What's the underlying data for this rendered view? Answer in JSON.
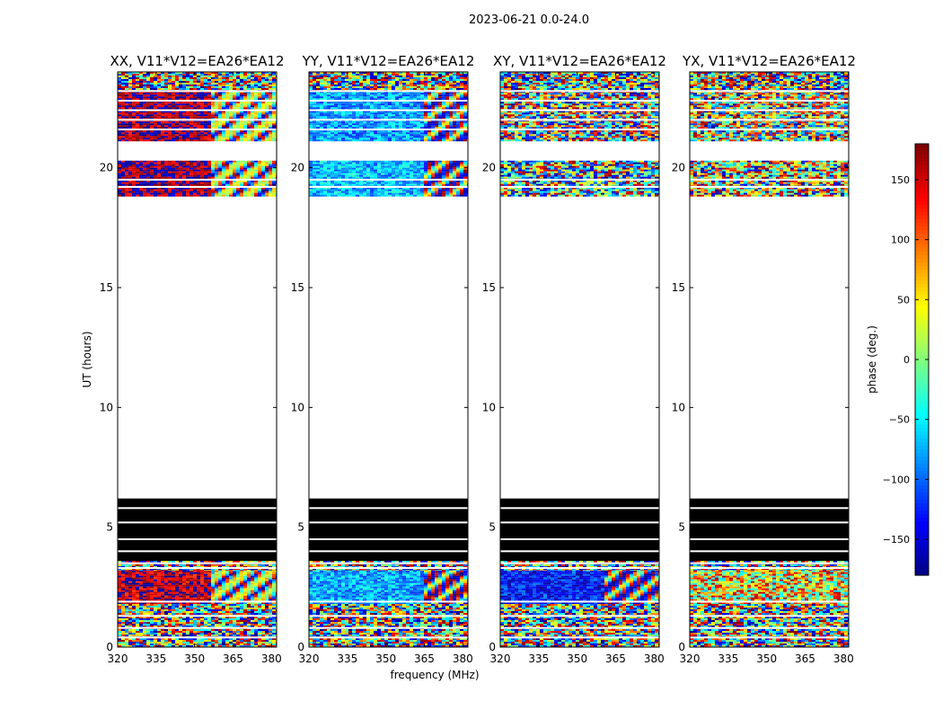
{
  "figure": {
    "suptitle": "2023-06-21 0.0-24.0",
    "colorbar": {
      "label": "phase (deg.)",
      "ticks": [
        150,
        100,
        50,
        0,
        -50,
        -100,
        -150
      ],
      "tick_labels": [
        "150",
        "100",
        "50",
        "0",
        "−50",
        "−100",
        "−150"
      ],
      "range": [
        -180,
        180
      ],
      "colormap": "jet",
      "colors": [
        "#00007f",
        "#0000ff",
        "#00ffff",
        "#7fff7f",
        "#ffff00",
        "#ff0000",
        "#7f0000"
      ]
    }
  },
  "chart_data": {
    "type": "heatmap",
    "xlabel": "frequency (MHz)",
    "ylabel": "UT (hours)",
    "xlim": [
      320,
      382
    ],
    "ylim": [
      0,
      24
    ],
    "x_ticks": [
      320,
      335,
      350,
      365,
      380
    ],
    "y_ticks": [
      0,
      5,
      10,
      15,
      20
    ],
    "y_tick_labels": [
      "0",
      "5",
      "10",
      "15",
      "20"
    ],
    "x_tick_labels": [
      "320",
      "335",
      "350",
      "365",
      "380"
    ],
    "panels": [
      {
        "title": "XX, V11*V12=EA26*EA12",
        "segments": [
          {
            "y0": 0.0,
            "y1": 1.8,
            "kind": "noise",
            "phase_center": 0,
            "spread": 180
          },
          {
            "y0": 1.8,
            "y1": 3.2,
            "kind": "split",
            "left_phase": 160,
            "right_phase": -150,
            "break_freq": 356
          },
          {
            "y0": 3.2,
            "y1": 3.6,
            "kind": "noise",
            "phase_center": 0,
            "spread": 180
          },
          {
            "y0": 3.6,
            "y1": 6.2,
            "kind": "blank_flagged"
          },
          {
            "y0": 6.2,
            "y1": 18.8,
            "kind": "empty"
          },
          {
            "y0": 18.8,
            "y1": 20.3,
            "kind": "split",
            "left_phase": 170,
            "right_phase": -150,
            "break_freq": 356
          },
          {
            "y0": 21.1,
            "y1": 23.2,
            "kind": "split",
            "left_phase": 170,
            "right_phase": -150,
            "break_freq": 356
          },
          {
            "y0": 23.2,
            "y1": 24.0,
            "kind": "noise",
            "phase_center": 0,
            "spread": 180
          }
        ]
      },
      {
        "title": "YY, V11*V12=EA26*EA12",
        "segments": [
          {
            "y0": 0.0,
            "y1": 1.8,
            "kind": "noise",
            "phase_center": 0,
            "spread": 180
          },
          {
            "y0": 1.8,
            "y1": 3.2,
            "kind": "split",
            "left_phase": -75,
            "right_phase": 0,
            "break_freq": 364
          },
          {
            "y0": 3.2,
            "y1": 3.6,
            "kind": "noise",
            "phase_center": 0,
            "spread": 180
          },
          {
            "y0": 3.6,
            "y1": 6.2,
            "kind": "blank_flagged"
          },
          {
            "y0": 6.2,
            "y1": 18.8,
            "kind": "empty"
          },
          {
            "y0": 18.8,
            "y1": 20.3,
            "kind": "split",
            "left_phase": -70,
            "right_phase": 20,
            "break_freq": 364
          },
          {
            "y0": 21.1,
            "y1": 23.2,
            "kind": "split",
            "left_phase": -80,
            "right_phase": 30,
            "break_freq": 364
          },
          {
            "y0": 23.2,
            "y1": 24.0,
            "kind": "noise",
            "phase_center": 0,
            "spread": 180
          }
        ]
      },
      {
        "title": "XY, V11*V12=EA26*EA12",
        "segments": [
          {
            "y0": 0.0,
            "y1": 1.8,
            "kind": "noise",
            "phase_center": 0,
            "spread": 180
          },
          {
            "y0": 1.8,
            "y1": 3.2,
            "kind": "split",
            "left_phase": -130,
            "right_phase": 20,
            "break_freq": 360
          },
          {
            "y0": 3.2,
            "y1": 3.6,
            "kind": "noise",
            "phase_center": 0,
            "spread": 180
          },
          {
            "y0": 3.6,
            "y1": 6.2,
            "kind": "blank_flagged"
          },
          {
            "y0": 6.2,
            "y1": 18.8,
            "kind": "empty"
          },
          {
            "y0": 18.8,
            "y1": 20.3,
            "kind": "noise",
            "phase_center": -80,
            "spread": 150
          },
          {
            "y0": 21.1,
            "y1": 23.2,
            "kind": "noise",
            "phase_center": 0,
            "spread": 180
          },
          {
            "y0": 23.2,
            "y1": 24.0,
            "kind": "noise",
            "phase_center": 0,
            "spread": 180
          }
        ]
      },
      {
        "title": "YX, V11*V12=EA26*EA12",
        "segments": [
          {
            "y0": 0.0,
            "y1": 1.8,
            "kind": "noise",
            "phase_center": 0,
            "spread": 180
          },
          {
            "y0": 1.8,
            "y1": 3.2,
            "kind": "noise",
            "phase_center": 50,
            "spread": 120
          },
          {
            "y0": 3.2,
            "y1": 3.6,
            "kind": "noise",
            "phase_center": 0,
            "spread": 180
          },
          {
            "y0": 3.6,
            "y1": 6.2,
            "kind": "blank_flagged"
          },
          {
            "y0": 6.2,
            "y1": 18.8,
            "kind": "empty"
          },
          {
            "y0": 18.8,
            "y1": 20.3,
            "kind": "noise",
            "phase_center": 80,
            "spread": 160
          },
          {
            "y0": 21.1,
            "y1": 23.2,
            "kind": "noise",
            "phase_center": 40,
            "spread": 160
          },
          {
            "y0": 23.2,
            "y1": 24.0,
            "kind": "noise",
            "phase_center": 0,
            "spread": 180
          }
        ]
      }
    ],
    "white_gap_rows": [
      0.4,
      0.8,
      1.3,
      1.9,
      3.3,
      3.5,
      4.0,
      4.5,
      5.2,
      5.8,
      19.2,
      19.5,
      21.6,
      22.0,
      22.4,
      22.8,
      23.2
    ]
  }
}
